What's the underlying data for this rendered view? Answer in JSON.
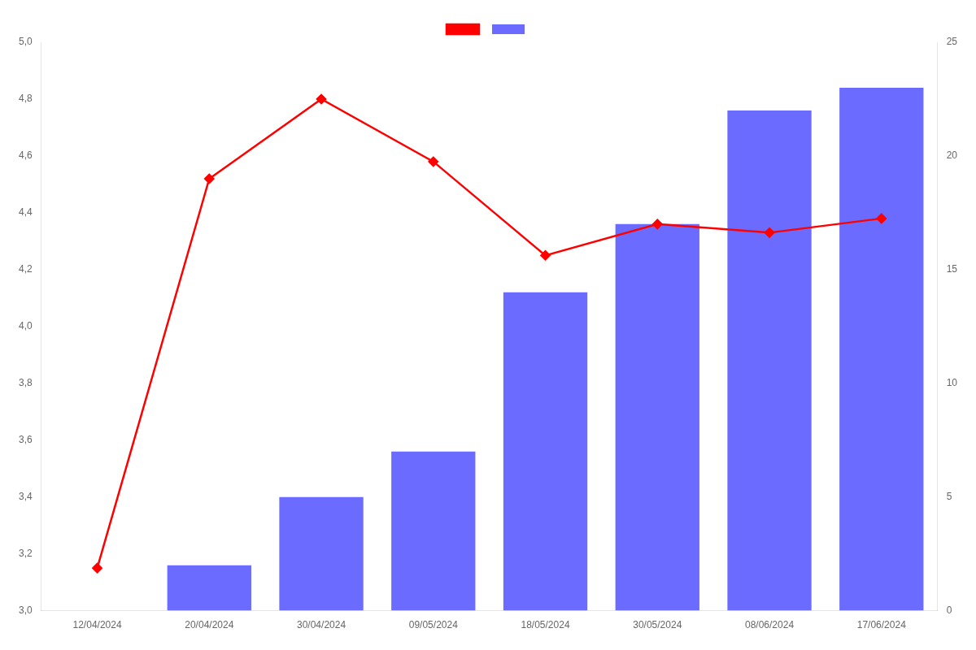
{
  "chart_data": {
    "type": "bar",
    "categories": [
      "12/04/2024",
      "20/04/2024",
      "30/04/2024",
      "09/05/2024",
      "18/05/2024",
      "30/05/2024",
      "08/06/2024",
      "17/06/2024"
    ],
    "series": [
      {
        "type": "line",
        "color": "#FF0000",
        "marker": "diamond",
        "values": [
          3.15,
          4.52,
          4.8,
          4.58,
          4.25,
          4.36,
          4.33,
          4.38
        ]
      },
      {
        "type": "bar",
        "color": "#6B6BFF",
        "axis": "y2",
        "values": [
          0,
          2,
          5,
          7,
          14,
          17,
          22,
          23
        ]
      }
    ],
    "ylim": [
      3.0,
      5.0
    ],
    "yticks": [
      {
        "value": 3.0,
        "label": "3,0"
      },
      {
        "value": 3.2,
        "label": "3,2"
      },
      {
        "value": 3.4,
        "label": "3,4"
      },
      {
        "value": 3.6,
        "label": "3,6"
      },
      {
        "value": 3.8,
        "label": "3,8"
      },
      {
        "value": 4.0,
        "label": "4,0"
      },
      {
        "value": 4.2,
        "label": "4,2"
      },
      {
        "value": 4.4,
        "label": "4,4"
      },
      {
        "value": 4.6,
        "label": "4,6"
      },
      {
        "value": 4.8,
        "label": "4,8"
      },
      {
        "value": 5.0,
        "label": "5,0"
      }
    ],
    "y2lim": [
      0,
      25
    ],
    "y2ticks": [
      0,
      5,
      10,
      15,
      20,
      25
    ],
    "grid": false,
    "legend": "top"
  }
}
